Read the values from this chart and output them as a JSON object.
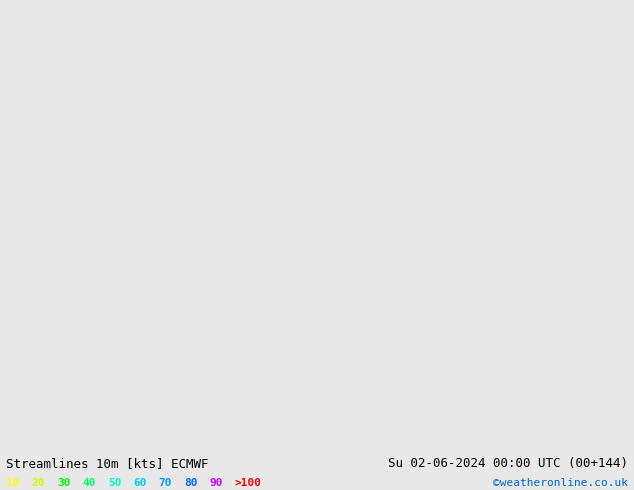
{
  "title_left": "Streamlines 10m [kts] ECMWF",
  "title_right": "Su 02-06-2024 00:00 UTC (00+144)",
  "credit": "©weatheronline.co.uk",
  "legend_values": [
    "10",
    "20",
    "30",
    "40",
    "50",
    "60",
    "70",
    "80",
    "90",
    ">100"
  ],
  "legend_colors": [
    "#ffff00",
    "#ccff00",
    "#00ff00",
    "#00ff66",
    "#00ffcc",
    "#00ccff",
    "#0099ff",
    "#0066ff",
    "#cc00ff",
    "#ff0000"
  ],
  "background_color": "#e8e8e8",
  "land_color_australia": "#ccffcc",
  "figsize": [
    6.34,
    4.9
  ],
  "dpi": 100,
  "lon_min": 90,
  "lon_max": 185,
  "lat_min": -55,
  "lat_max": 5,
  "streamline_density": 3,
  "colormap_speeds": [
    0,
    10,
    20,
    30,
    40,
    50,
    60,
    70,
    80,
    90,
    100
  ],
  "colormap_colors": [
    "#e8e8e8",
    "#ffff00",
    "#ccff00",
    "#00ff00",
    "#00ff66",
    "#00ffcc",
    "#00ccff",
    "#0099ff",
    "#0066ff",
    "#cc00ff",
    "#ff0000"
  ]
}
